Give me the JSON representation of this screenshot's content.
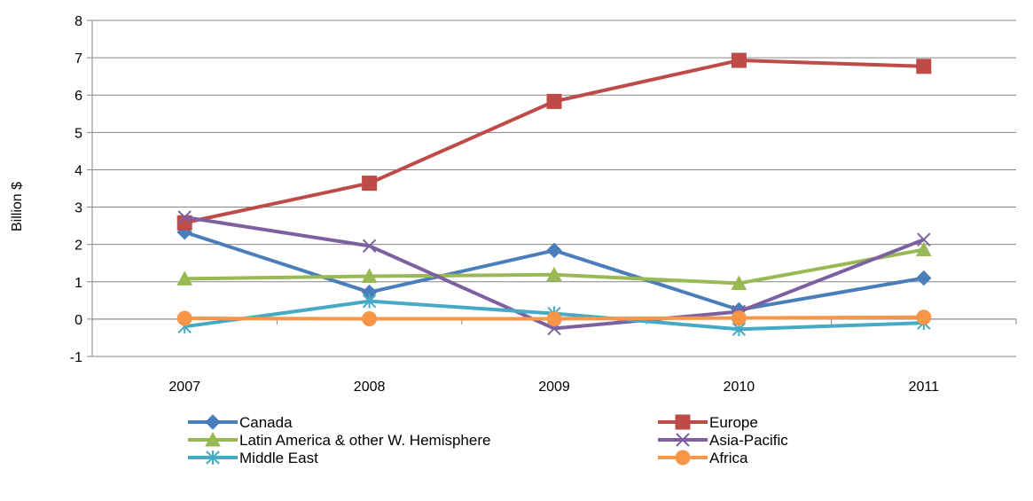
{
  "chart_data": {
    "type": "line",
    "title": "",
    "xlabel": "",
    "ylabel": "Billion $",
    "categories": [
      "2007",
      "2008",
      "2009",
      "2010",
      "2011"
    ],
    "ylim": [
      -1,
      8
    ],
    "yticks": [
      "-1",
      "0",
      "1",
      "2",
      "3",
      "4",
      "5",
      "6",
      "7",
      "8"
    ],
    "grid": "horizontal",
    "legend_position": "bottom",
    "series": [
      {
        "name": "Canada",
        "values": [
          2.33,
          0.72,
          1.84,
          0.25,
          1.1
        ],
        "color": "#4a7ebb",
        "marker": "diamond"
      },
      {
        "name": "Europe",
        "values": [
          2.58,
          3.64,
          5.83,
          6.93,
          6.77
        ],
        "color": "#be4b48",
        "marker": "square"
      },
      {
        "name": "Latin America & other W. Hemisphere",
        "values": [
          1.08,
          1.15,
          1.19,
          0.96,
          1.86
        ],
        "color": "#98b954",
        "marker": "triangle"
      },
      {
        "name": "Asia-Pacific",
        "values": [
          2.73,
          1.96,
          -0.25,
          0.2,
          2.13
        ],
        "color": "#7d60a0",
        "marker": "x"
      },
      {
        "name": "Middle East",
        "values": [
          -0.2,
          0.48,
          0.15,
          -0.27,
          -0.1
        ],
        "color": "#46aac5",
        "marker": "asterisk"
      },
      {
        "name": "Africa",
        "values": [
          0.02,
          0.01,
          0.01,
          0.03,
          0.05
        ],
        "color": "#f79646",
        "marker": "circle"
      }
    ]
  }
}
